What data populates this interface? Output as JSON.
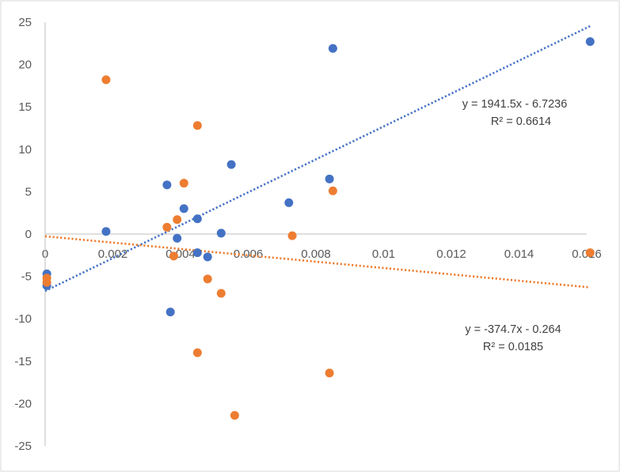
{
  "chart_data": {
    "type": "scatter",
    "title": "",
    "xlabel": "",
    "ylabel": "",
    "xlim": [
      0,
      0.016
    ],
    "ylim": [
      -25,
      25
    ],
    "x_ticks": [
      0,
      0.002,
      0.004,
      0.006,
      0.008,
      0.01,
      0.012,
      0.014,
      0.016
    ],
    "x_tick_labels": [
      "0",
      "0.002",
      "0.004",
      "0.006",
      "0.008",
      "0.01",
      "0.012",
      "0.014",
      "0.016"
    ],
    "y_ticks": [
      -25,
      -20,
      -15,
      -10,
      -5,
      0,
      5,
      10,
      15,
      20,
      25
    ],
    "y_tick_labels": [
      "-25",
      "-20",
      "-15",
      "-10",
      "-5",
      "0",
      "5",
      "10",
      "15",
      "20",
      "25"
    ],
    "grid": false,
    "series": [
      {
        "color": "#4472C4",
        "points": [
          [
            5e-05,
            -4.7
          ],
          [
            5e-05,
            -6.1
          ],
          [
            0.0018,
            0.3
          ],
          [
            0.0036,
            5.8
          ],
          [
            0.0039,
            -0.5
          ],
          [
            0.0041,
            3.0
          ],
          [
            0.0045,
            -2.2
          ],
          [
            0.0045,
            1.8
          ],
          [
            0.0048,
            -2.7
          ],
          [
            0.0052,
            0.1
          ],
          [
            0.0055,
            8.2
          ],
          [
            0.0072,
            3.7
          ],
          [
            0.0037,
            -9.2
          ],
          [
            0.0084,
            6.5
          ],
          [
            0.0085,
            21.9
          ],
          [
            0.0161,
            22.7
          ]
        ],
        "trendline": {
          "type": "linear",
          "slope": 1941.5,
          "intercept": -6.7236,
          "x_range": [
            0,
            0.0161
          ],
          "style": "dotted"
        },
        "equation": "y = 1941.5x - 6.7236",
        "r_squared": "R² = 0.6614"
      },
      {
        "color": "#ED7D31",
        "points": [
          [
            5e-05,
            -5.2
          ],
          [
            5e-05,
            -5.7
          ],
          [
            0.0018,
            18.2
          ],
          [
            0.0036,
            0.8
          ],
          [
            0.0039,
            1.7
          ],
          [
            0.0038,
            -2.6
          ],
          [
            0.0041,
            6.0
          ],
          [
            0.0045,
            12.8
          ],
          [
            0.0048,
            -5.3
          ],
          [
            0.0052,
            -7.0
          ],
          [
            0.0045,
            -14.0
          ],
          [
            0.0056,
            -21.4
          ],
          [
            0.0073,
            -0.2
          ],
          [
            0.0085,
            5.1
          ],
          [
            0.0084,
            -16.4
          ],
          [
            0.0161,
            -2.2
          ]
        ],
        "trendline": {
          "type": "linear",
          "slope": -374.7,
          "intercept": -0.264,
          "x_range": [
            0,
            0.0161
          ],
          "style": "dotted"
        },
        "equation": "y = -374.7x - 0.264",
        "r_squared": "R² = 0.0185"
      }
    ]
  }
}
